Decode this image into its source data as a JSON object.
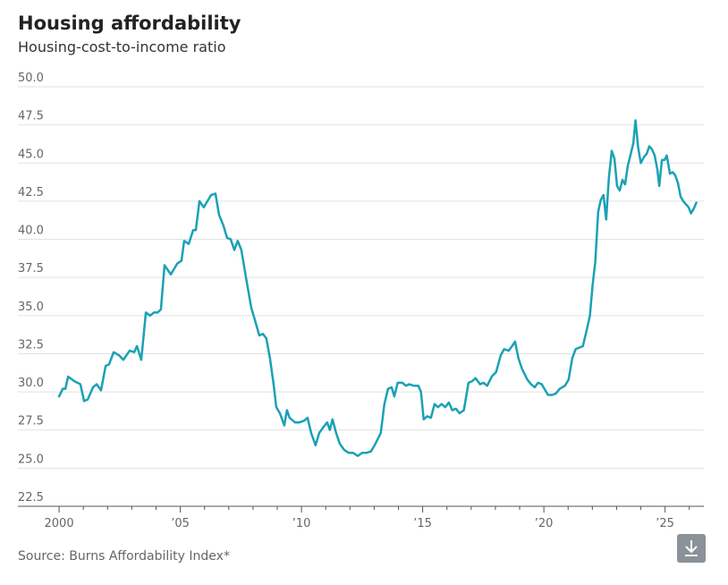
{
  "chart_data": {
    "type": "line",
    "title": "Housing affordability",
    "subtitle": "Housing-cost-to-income ratio",
    "source": "Source: Burns Affordability Index*",
    "color": "#1ba1b5",
    "grid": true,
    "xlim": [
      1998.3,
      2026.6
    ],
    "xticks": [
      2000,
      {
        "value": 2005,
        "label": "’05"
      },
      {
        "value": 2010,
        "label": "’10"
      },
      {
        "value": 2015,
        "label": "’15"
      },
      {
        "value": 2020,
        "label": "’20"
      },
      {
        "value": 2025,
        "label": "’25"
      }
    ],
    "minor_xticks": [
      2001,
      2002,
      2003,
      2004,
      2006,
      2007,
      2008,
      2009,
      2011,
      2012,
      2013,
      2014,
      2016,
      2017,
      2018,
      2019,
      2021,
      2022,
      2023,
      2024,
      2026
    ],
    "ylim": [
      22.5,
      50
    ],
    "yticks": [
      22.5,
      {
        "value": 25,
        "label": "25.0"
      },
      27.5,
      {
        "value": 30,
        "label": "30.0"
      },
      32.5,
      {
        "value": 35,
        "label": "35.0"
      },
      37.5,
      {
        "value": 40,
        "label": "40.0"
      },
      42.5,
      {
        "value": 45,
        "label": "45.0"
      },
      47.5,
      {
        "value": 50,
        "label": "50.0"
      }
    ],
    "x": [
      2000.0,
      2000.15,
      2000.26,
      2000.37,
      2000.63,
      2000.88,
      2001.03,
      2001.18,
      2001.4,
      2001.55,
      2001.73,
      2001.92,
      2002.06,
      2002.25,
      2002.47,
      2002.65,
      2002.91,
      2003.1,
      2003.21,
      2003.39,
      2003.58,
      2003.76,
      2003.91,
      2004.06,
      2004.2,
      2004.35,
      2004.61,
      2004.87,
      2005.05,
      2005.16,
      2005.35,
      2005.53,
      2005.64,
      2005.79,
      2005.97,
      2006.12,
      2006.27,
      2006.45,
      2006.6,
      2006.78,
      2006.93,
      2007.08,
      2007.23,
      2007.37,
      2007.52,
      2007.71,
      2007.93,
      2008.08,
      2008.26,
      2008.41,
      2008.55,
      2008.7,
      2008.85,
      2008.96,
      2009.11,
      2009.29,
      2009.4,
      2009.51,
      2009.73,
      2009.92,
      2010.1,
      2010.25,
      2010.4,
      2010.58,
      2010.73,
      2010.91,
      2011.06,
      2011.17,
      2011.28,
      2011.43,
      2011.58,
      2011.76,
      2011.95,
      2012.13,
      2012.32,
      2012.5,
      2012.68,
      2012.87,
      2013.05,
      2013.27,
      2013.42,
      2013.57,
      2013.72,
      2013.83,
      2013.97,
      2014.16,
      2014.31,
      2014.45,
      2014.64,
      2014.82,
      2014.93,
      2015.04,
      2015.19,
      2015.34,
      2015.49,
      2015.63,
      2015.78,
      2015.93,
      2016.08,
      2016.22,
      2016.37,
      2016.52,
      2016.7,
      2016.89,
      2017.04,
      2017.18,
      2017.37,
      2017.51,
      2017.66,
      2017.85,
      2018.03,
      2018.22,
      2018.36,
      2018.55,
      2018.69,
      2018.81,
      2018.95,
      2019.1,
      2019.32,
      2019.47,
      2019.62,
      2019.76,
      2019.91,
      2020.02,
      2020.17,
      2020.35,
      2020.5,
      2020.65,
      2020.87,
      2021.02,
      2021.17,
      2021.31,
      2021.46,
      2021.61,
      2021.76,
      2021.9,
      2022.01,
      2022.12,
      2022.24,
      2022.35,
      2022.46,
      2022.57,
      2022.68,
      2022.8,
      2022.91,
      2023.02,
      2023.13,
      2023.24,
      2023.35,
      2023.46,
      2023.57,
      2023.69,
      2023.78,
      2023.89,
      2024.0,
      2024.13,
      2024.24,
      2024.35,
      2024.46,
      2024.57,
      2024.68,
      2024.76,
      2024.87,
      2024.98,
      2025.07,
      2025.2,
      2025.31,
      2025.42,
      2025.53,
      2025.64,
      2025.75,
      2025.86,
      2025.97,
      2026.07,
      2026.18,
      2026.29
    ],
    "values": [
      29.7,
      30.2,
      30.2,
      31.0,
      30.7,
      30.5,
      29.4,
      29.5,
      30.3,
      30.5,
      30.1,
      31.7,
      31.8,
      32.6,
      32.4,
      32.1,
      32.7,
      32.6,
      33.0,
      32.1,
      35.2,
      35.0,
      35.2,
      35.2,
      35.4,
      38.3,
      37.7,
      38.4,
      38.6,
      39.9,
      39.7,
      40.6,
      40.6,
      42.5,
      42.1,
      42.5,
      42.9,
      43.0,
      41.6,
      40.9,
      40.1,
      40.0,
      39.3,
      39.9,
      39.3,
      37.5,
      35.5,
      34.7,
      33.7,
      33.8,
      33.5,
      32.2,
      30.5,
      29.0,
      28.6,
      27.8,
      28.8,
      28.3,
      28.0,
      28.0,
      28.1,
      28.3,
      27.3,
      26.5,
      27.3,
      27.7,
      28.0,
      27.5,
      28.2,
      27.3,
      26.6,
      26.2,
      26.0,
      26.0,
      25.8,
      26.0,
      26.0,
      26.1,
      26.6,
      27.3,
      29.2,
      30.2,
      30.3,
      29.7,
      30.6,
      30.6,
      30.4,
      30.5,
      30.4,
      30.4,
      30.0,
      28.2,
      28.4,
      28.3,
      29.2,
      29.0,
      29.2,
      29.0,
      29.3,
      28.8,
      28.9,
      28.6,
      28.8,
      30.6,
      30.7,
      30.9,
      30.5,
      30.6,
      30.4,
      31.0,
      31.3,
      32.4,
      32.8,
      32.7,
      33.0,
      33.3,
      32.2,
      31.5,
      30.8,
      30.5,
      30.3,
      30.6,
      30.5,
      30.2,
      29.8,
      29.8,
      29.9,
      30.2,
      30.4,
      30.8,
      32.2,
      32.8,
      32.9,
      33.0,
      34.0,
      35.0,
      37.0,
      38.5,
      41.8,
      42.6,
      42.9,
      41.3,
      44.0,
      45.8,
      45.3,
      43.5,
      43.2,
      43.9,
      43.6,
      44.8,
      45.5,
      46.3,
      47.8,
      46.0,
      45.0,
      45.4,
      45.6,
      46.1,
      45.9,
      45.5,
      44.6,
      43.5,
      45.2,
      45.2,
      45.5,
      44.3,
      44.4,
      44.2,
      43.7,
      42.8,
      42.5,
      42.3,
      42.1,
      41.7,
      42.0,
      42.4
    ]
  }
}
